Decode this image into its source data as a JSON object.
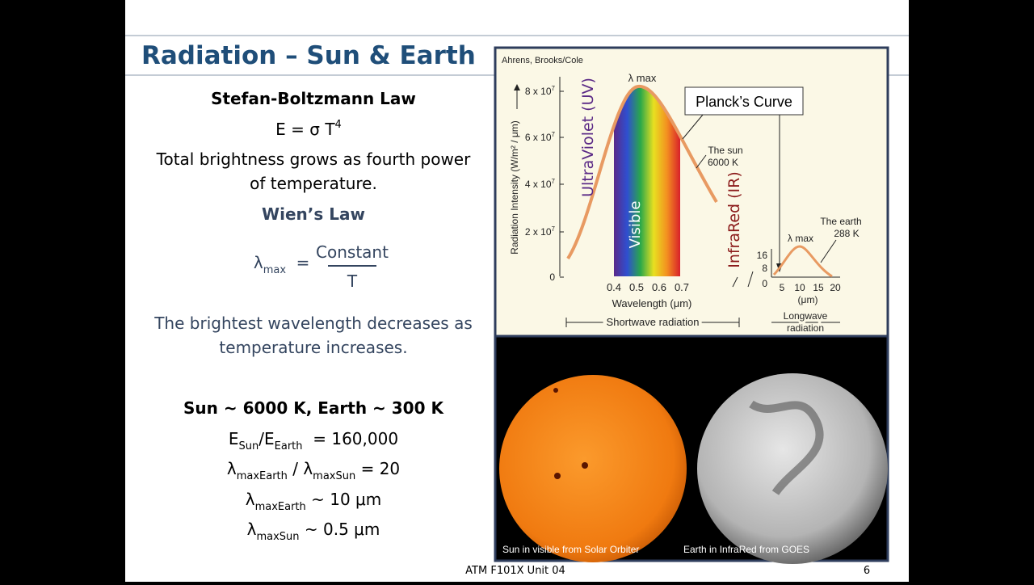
{
  "slide": {
    "title": "Radiation – Sun & Earth",
    "stefan": {
      "heading": "Stefan-Boltzmann Law",
      "formula": [
        "E = σ T",
        "4"
      ],
      "lines": [
        "Total brightness grows as fourth power",
        "of temperature."
      ]
    },
    "wien": {
      "heading": "Wien’s Law",
      "lambda": "λ",
      "sub": "max",
      "equals": "=",
      "numerator": "Constant",
      "denominator": "T",
      "lines": [
        "The brightest wavelength decreases as",
        "temperature increases."
      ]
    },
    "comparison": {
      "heading": "Sun ~ 6000 K, Earth ~ 300 K",
      "ratio": [
        "E",
        "Sun",
        "/E",
        "Earth",
        "  = 160,000"
      ],
      "wavelength_ratio": [
        "λ",
        "maxEarth",
        " / λ",
        "maxSun",
        " = 20"
      ],
      "earth_peak": [
        "λ",
        "maxEarth",
        " ~ 10 μm"
      ],
      "sun_peak": [
        "λ",
        "maxSun",
        " ~ 0.5 μm"
      ]
    },
    "figure": {
      "credit": "Ahrens, Brooks/Cole",
      "y_label": "Radiation Intensity (W/m² / μm)",
      "yticks": [
        [
          "8 x 10",
          "7"
        ],
        [
          "6 x 10",
          "7"
        ],
        [
          "4 x 10",
          "7"
        ],
        [
          "2 x 10",
          "7"
        ],
        [
          "0",
          ""
        ]
      ],
      "xticks": [
        "0.4",
        "0.5",
        "0.6",
        "0.7"
      ],
      "x_label": "Wavelength (μm)",
      "sun_peak_label": "λ max",
      "uv": "UltraViolet (UV)",
      "visible": "Visible",
      "ir": "InfraRed (IR)",
      "planck": "Planck’s Curve",
      "sun_label": [
        "The sun",
        "6000 K"
      ],
      "shortwave": "Shortwave radiation",
      "earth_yticks": [
        "16",
        "8",
        "0"
      ],
      "earth_xticks": [
        "5",
        "10",
        "15",
        "20"
      ],
      "earth_unit": "(μm)",
      "earth_peak_label": "λ max",
      "earth_label": [
        "The earth",
        "288 K"
      ],
      "longwave": [
        "Longwave",
        "radiation"
      ]
    },
    "captions": [
      "Sun in visible from Solar Orbiter",
      "Earth in InfraRed from GOES"
    ],
    "footer": {
      "course": "ATM F101X Unit 04",
      "page": "6"
    }
  }
}
